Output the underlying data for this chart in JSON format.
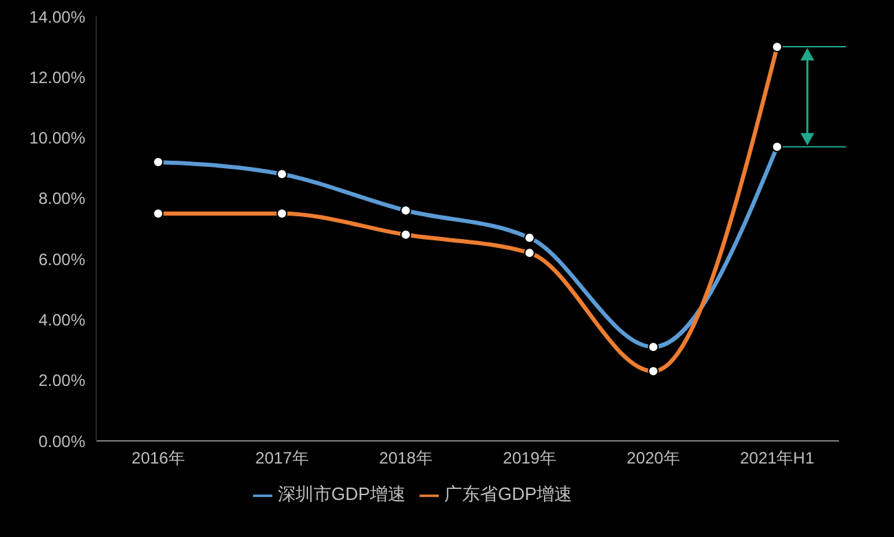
{
  "chart_data": {
    "type": "line",
    "categories": [
      "2016年",
      "2017年",
      "2018年",
      "2019年",
      "2020年",
      "2021年H1"
    ],
    "series": [
      {
        "name": "深圳市GDP增速",
        "color": "#5b9bd5",
        "values": [
          9.2,
          8.8,
          7.6,
          6.7,
          3.1,
          9.7
        ]
      },
      {
        "name": "广东省GDP增速",
        "color": "#ed7d31",
        "values": [
          7.5,
          7.5,
          6.8,
          6.2,
          2.3,
          13.0
        ]
      }
    ],
    "ylim": [
      0,
      14
    ],
    "yticks": [
      {
        "value": 0,
        "label": "0.00%"
      },
      {
        "value": 2,
        "label": "2.00%"
      },
      {
        "value": 4,
        "label": "4.00%"
      },
      {
        "value": 6,
        "label": "6.00%"
      },
      {
        "value": 8,
        "label": "8.00%"
      },
      {
        "value": 10,
        "label": "10.00%"
      },
      {
        "value": 12,
        "label": "12.00%"
      },
      {
        "value": 14,
        "label": "14.00%"
      }
    ],
    "grid": false,
    "legend": "bottom",
    "marker": "circle",
    "line_style": "solid"
  }
}
